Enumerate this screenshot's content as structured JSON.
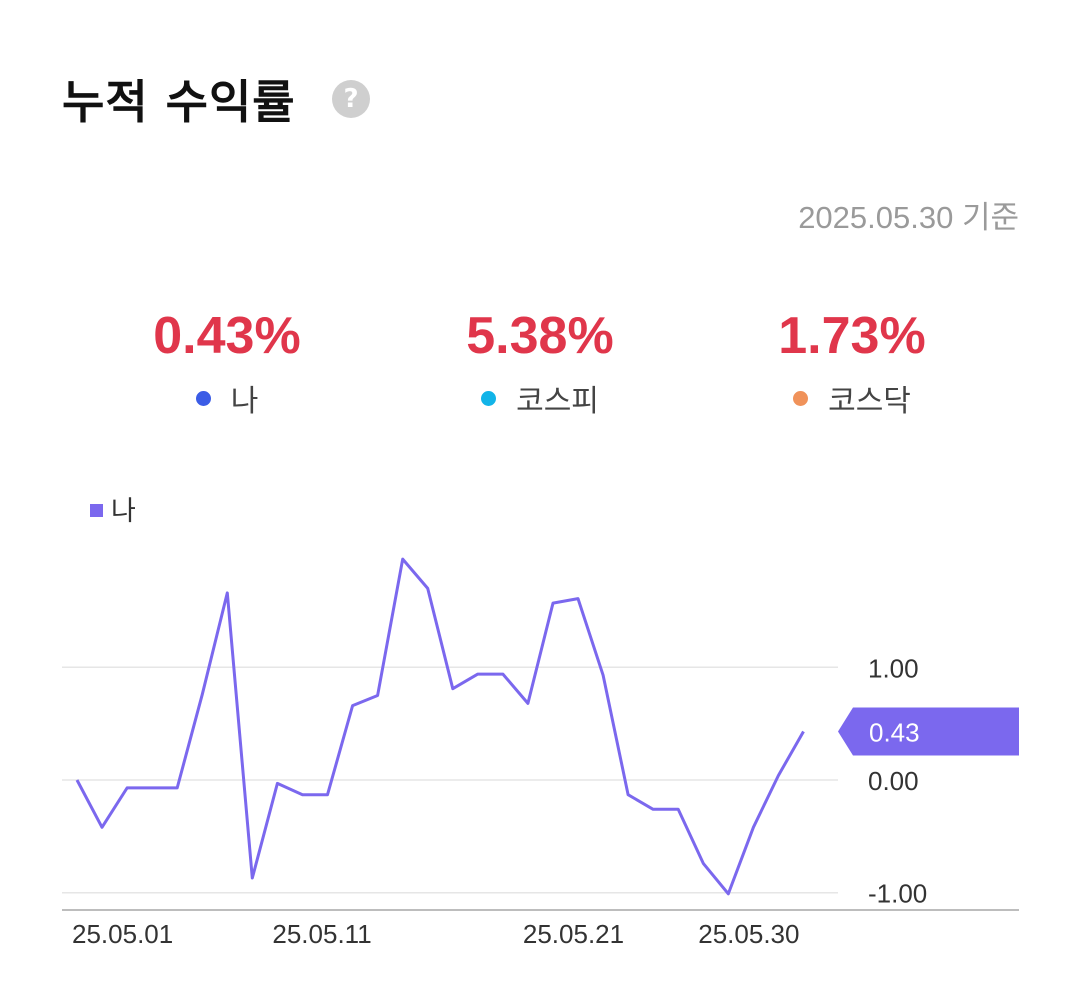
{
  "header": {
    "title": "누적 수익률",
    "help_symbol": "?",
    "as_of": "2025.05.30 기준"
  },
  "summary": [
    {
      "value": "0.43%",
      "label": "나",
      "color": "#3b5ce6"
    },
    {
      "value": "5.38%",
      "label": "코스피",
      "color": "#12b4e8"
    },
    {
      "value": "1.73%",
      "label": "코스닥",
      "color": "#f0925a"
    }
  ],
  "colors": {
    "positive": "#e0364b",
    "series": "#7b68ee",
    "grid": "#e6e6e6",
    "axis": "#bdbdbd"
  },
  "chart_data": {
    "type": "line",
    "legend": {
      "label": "나",
      "placement": "top-left"
    },
    "series": [
      {
        "name": "나",
        "values": [
          0.0,
          -0.42,
          -0.07,
          -0.07,
          -0.07,
          0.76,
          1.66,
          -0.87,
          -0.03,
          -0.13,
          -0.13,
          0.66,
          0.75,
          1.96,
          1.7,
          0.81,
          0.94,
          0.94,
          0.68,
          1.57,
          1.61,
          0.93,
          -0.13,
          -0.26,
          -0.26,
          -0.74,
          -1.01,
          -0.42,
          0.04,
          0.43
        ]
      }
    ],
    "y_ticks": [
      {
        "value": 1.0,
        "label": "1.00"
      },
      {
        "value": 0.0,
        "label": "0.00"
      },
      {
        "value": -1.0,
        "label": "-1.00"
      }
    ],
    "x_ticks": [
      {
        "index": 0,
        "label": "25.05.01"
      },
      {
        "index": 8,
        "label": "25.05.11"
      },
      {
        "index": 18,
        "label": "25.05.21"
      },
      {
        "index": 25,
        "label": "25.05.30"
      }
    ],
    "last_value_label": "0.43",
    "ylim": [
      -1.1,
      2.05
    ],
    "grid": true
  }
}
